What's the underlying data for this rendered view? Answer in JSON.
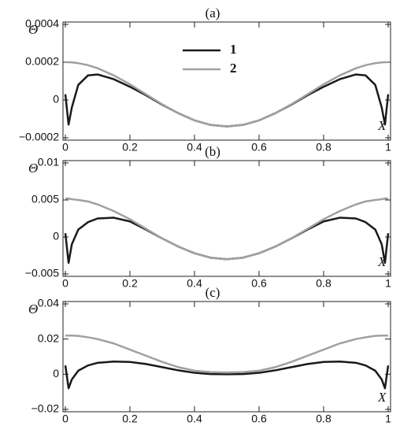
{
  "chart_data": [
    {
      "type": "line",
      "title": "(a)",
      "y_label": "Θ",
      "x_label": "X",
      "legend": "top center",
      "xlim": [
        0,
        1
      ],
      "xticks": [
        0,
        0.2,
        0.4,
        0.6,
        0.8,
        1
      ],
      "ylim": [
        -0.0002,
        0.0004
      ],
      "yticks": [
        {
          "value": -0.0002,
          "label": "−0.0002"
        },
        0,
        0.0002,
        0.0004
      ],
      "x": [
        0,
        0.01,
        0.02,
        0.04,
        0.07,
        0.1,
        0.15,
        0.2,
        0.25,
        0.3,
        0.35,
        0.4,
        0.45,
        0.5,
        0.55,
        0.6,
        0.65,
        0.7,
        0.75,
        0.8,
        0.85,
        0.9,
        0.93,
        0.96,
        0.98,
        0.99,
        1
      ],
      "series": [
        {
          "name": "1",
          "color": "#1a1a1a",
          "values": [
            3e-05,
            -0.00013,
            -4e-05,
            8e-05,
            0.00013,
            0.000135,
            0.00011,
            7e-05,
            2.5e-05,
            -2.5e-05,
            -7e-05,
            -0.000108,
            -0.000132,
            -0.00014,
            -0.000132,
            -0.000108,
            -7e-05,
            -2.5e-05,
            2.5e-05,
            7e-05,
            0.00011,
            0.000135,
            0.00013,
            8e-05,
            -4e-05,
            -0.00013,
            3e-05
          ]
        },
        {
          "name": "2",
          "color": "#a0a0a0",
          "values": [
            0.0002,
            0.0002,
            0.000199,
            0.000195,
            0.000184,
            0.000168,
            0.00013,
            8.3e-05,
            3e-05,
            -2.3e-05,
            -7e-05,
            -0.000108,
            -0.000132,
            -0.00014,
            -0.000132,
            -0.000108,
            -7e-05,
            -2.3e-05,
            3e-05,
            8.3e-05,
            0.00013,
            0.000168,
            0.000184,
            0.000195,
            0.000199,
            0.0002,
            0.0002
          ]
        }
      ]
    },
    {
      "type": "line",
      "title": "(b)",
      "y_label": "Θ",
      "x_label": "X",
      "xlim": [
        0,
        1
      ],
      "xticks": [
        0,
        0.2,
        0.4,
        0.6,
        0.8,
        1
      ],
      "ylim": [
        -0.005,
        0.01
      ],
      "yticks": [
        {
          "value": -0.005,
          "label": "−0.005"
        },
        0,
        0.005,
        0.01
      ],
      "x": [
        0,
        0.01,
        0.02,
        0.04,
        0.07,
        0.1,
        0.15,
        0.2,
        0.25,
        0.3,
        0.35,
        0.4,
        0.45,
        0.5,
        0.55,
        0.6,
        0.65,
        0.7,
        0.75,
        0.8,
        0.85,
        0.9,
        0.93,
        0.96,
        0.98,
        0.99,
        1
      ],
      "series": [
        {
          "color": "#1a1a1a",
          "values": [
            0.0005,
            -0.0035,
            -0.001,
            0.001,
            0.002,
            0.0025,
            0.0026,
            0.0021,
            0.001,
            -0.0002,
            -0.0013,
            -0.0022,
            -0.0028,
            -0.003,
            -0.0028,
            -0.0022,
            -0.0013,
            -0.0002,
            0.001,
            0.0021,
            0.0026,
            0.0025,
            0.002,
            0.001,
            -0.001,
            -0.0035,
            0.0005
          ]
        },
        {
          "color": "#a0a0a0",
          "values": [
            0.0052,
            0.0052,
            0.0051,
            0.005,
            0.0048,
            0.0044,
            0.0035,
            0.0024,
            0.0011,
            -0.0002,
            -0.0013,
            -0.0022,
            -0.0028,
            -0.003,
            -0.0028,
            -0.0022,
            -0.0013,
            -0.0002,
            0.0011,
            0.0024,
            0.0035,
            0.0044,
            0.0048,
            0.005,
            0.0051,
            0.0052,
            0.0052
          ]
        }
      ]
    },
    {
      "type": "line",
      "title": "(c)",
      "y_label": "Θ",
      "x_label": "X",
      "xlim": [
        0,
        1
      ],
      "xticks": [
        0,
        0.2,
        0.4,
        0.6,
        0.8,
        1
      ],
      "ylim": [
        -0.02,
        0.04
      ],
      "yticks": [
        {
          "value": -0.02,
          "label": "−0.02"
        },
        0,
        0.02,
        0.04
      ],
      "x": [
        0,
        0.01,
        0.02,
        0.04,
        0.07,
        0.1,
        0.15,
        0.2,
        0.25,
        0.3,
        0.35,
        0.4,
        0.45,
        0.5,
        0.55,
        0.6,
        0.65,
        0.7,
        0.75,
        0.8,
        0.85,
        0.9,
        0.93,
        0.96,
        0.98,
        0.99,
        1
      ],
      "series": [
        {
          "color": "#1a1a1a",
          "values": [
            0.005,
            -0.008,
            -0.003,
            0.002,
            0.005,
            0.0065,
            0.0072,
            0.007,
            0.0058,
            0.004,
            0.0022,
            0.0008,
            0.0001,
            0,
            0.0001,
            0.0008,
            0.0022,
            0.004,
            0.0058,
            0.007,
            0.0072,
            0.0065,
            0.005,
            0.002,
            -0.003,
            -0.008,
            0.005
          ]
        },
        {
          "color": "#a0a0a0",
          "values": [
            0.022,
            0.022,
            0.022,
            0.0218,
            0.021,
            0.02,
            0.0175,
            0.014,
            0.0105,
            0.007,
            0.004,
            0.002,
            0.0012,
            0.001,
            0.0012,
            0.002,
            0.004,
            0.007,
            0.0105,
            0.014,
            0.0175,
            0.02,
            0.021,
            0.0218,
            0.022,
            0.022,
            0.022
          ]
        }
      ]
    }
  ]
}
